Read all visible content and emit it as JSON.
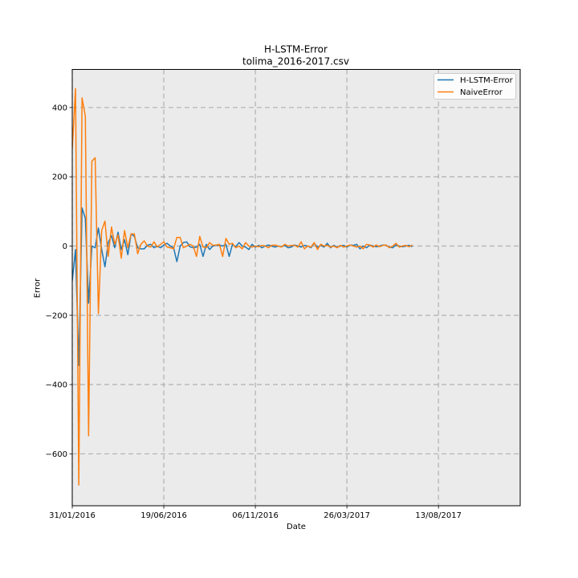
{
  "chart_data": {
    "type": "line",
    "title": "H-LSTM-Error",
    "subtitle": "tolima_2016-2017.csv",
    "xlabel": "Date",
    "ylabel": "Error",
    "x_tick_labels": [
      "31/01/2016",
      "19/06/2016",
      "06/11/2016",
      "26/03/2017",
      "13/08/2017"
    ],
    "y_ticks": [
      -600,
      -400,
      -200,
      0,
      200,
      400
    ],
    "ylim": [
      -750,
      510
    ],
    "xlim": [
      "31/01/2016",
      "16/12/2017"
    ],
    "grid": true,
    "legend_position": "upper right",
    "sampling_interval_days": 5,
    "start_date": "31/01/2016",
    "series": [
      {
        "name": "H-LSTM-Error",
        "color": "#1f77b4",
        "values": [
          -100,
          -10,
          -345,
          110,
          80,
          -165,
          0,
          -5,
          52,
          -10,
          -60,
          10,
          30,
          -5,
          40,
          -10,
          18,
          -25,
          35,
          28,
          -5,
          -8,
          -8,
          2,
          5,
          -5,
          0,
          -5,
          3,
          8,
          0,
          -5,
          -45,
          0,
          10,
          12,
          -2,
          -5,
          -3,
          5,
          -30,
          5,
          -10,
          0,
          2,
          3,
          0,
          5,
          -30,
          5,
          -2,
          10,
          0,
          -3,
          -10,
          5,
          -3,
          2,
          -5,
          0,
          3,
          0,
          -3,
          0,
          -2,
          2,
          -5,
          -3,
          3,
          0,
          -3,
          2,
          0,
          -5,
          8,
          -3,
          2,
          -3,
          8,
          -5,
          2,
          -3,
          0,
          2,
          -3,
          3,
          2,
          5,
          -8,
          0,
          -5,
          3,
          0,
          -2,
          0,
          3,
          2,
          -3,
          -5,
          3,
          0,
          -2,
          0,
          2,
          -2
        ]
      },
      {
        "name": "NaiveError",
        "color": "#ff7f0e",
        "values": [
          280,
          455,
          -690,
          428,
          375,
          -548,
          245,
          255,
          -195,
          45,
          72,
          -30,
          55,
          5,
          32,
          -35,
          45,
          -5,
          35,
          35,
          -22,
          5,
          15,
          0,
          -3,
          12,
          -3,
          5,
          12,
          -3,
          -5,
          -8,
          25,
          25,
          -5,
          0,
          5,
          0,
          -30,
          28,
          -3,
          -5,
          10,
          2,
          3,
          5,
          -30,
          22,
          5,
          8,
          -5,
          0,
          -8,
          10,
          0,
          -3,
          0,
          -2,
          2,
          0,
          -5,
          2,
          3,
          0,
          -3,
          5,
          0,
          2,
          2,
          -3,
          12,
          -8,
          0,
          -3,
          10,
          -10,
          5,
          0,
          2,
          -3,
          0,
          -5,
          2,
          -3,
          0,
          3,
          0,
          -3,
          0,
          -8,
          5,
          3,
          -3,
          3,
          -2,
          2,
          3,
          -5,
          0,
          8,
          -3,
          0,
          2,
          -2,
          3
        ]
      }
    ]
  }
}
